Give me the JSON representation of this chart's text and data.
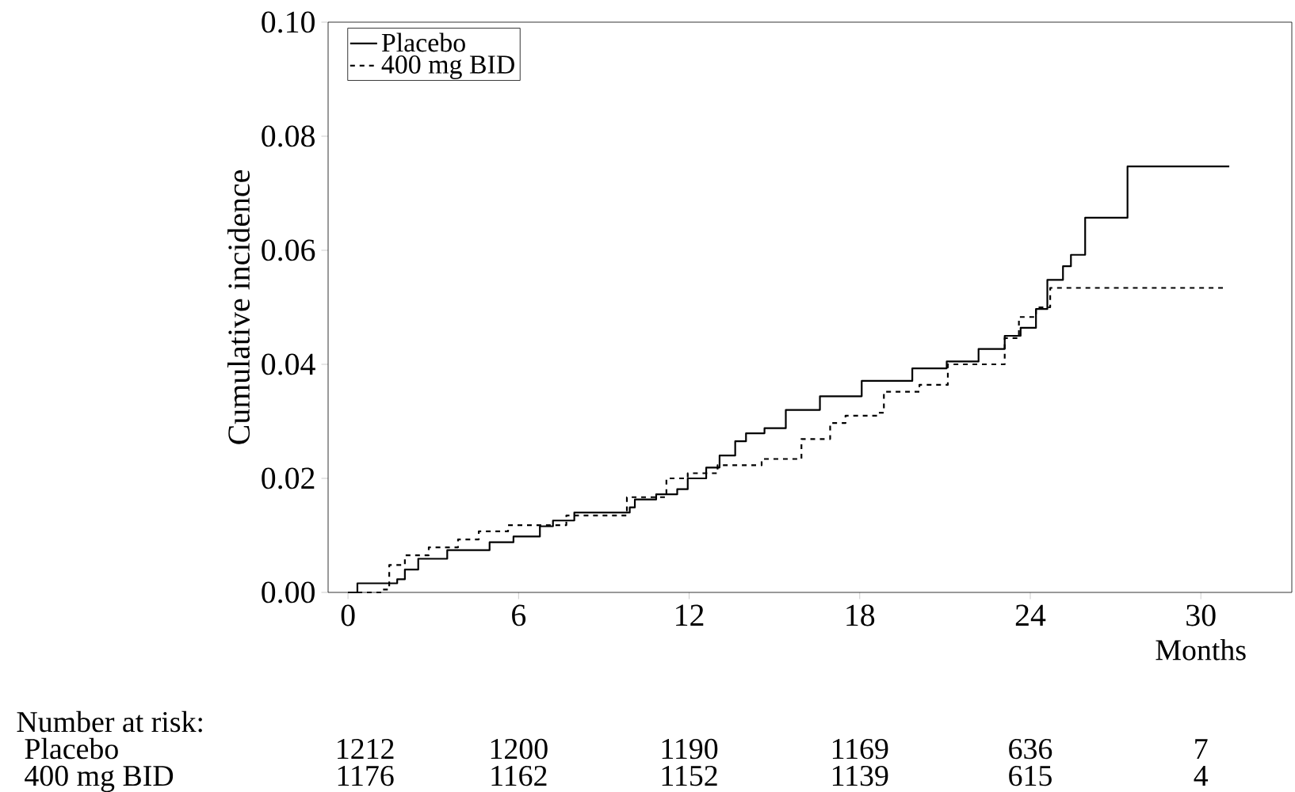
{
  "chart_data": {
    "type": "step",
    "ylabel": "Cumulative incidence",
    "xlabel": "Months",
    "xlim": [
      -0.7,
      33.2
    ],
    "ylim": [
      0,
      0.1
    ],
    "xticks": [
      0,
      6,
      12,
      18,
      24,
      30
    ],
    "yticks": [
      {
        "value": 0,
        "label": "0.00"
      },
      {
        "value": 0.02,
        "label": "0.02"
      },
      {
        "value": 0.04,
        "label": "0.04"
      },
      {
        "value": 0.06,
        "label": "0.06"
      },
      {
        "value": 0.08,
        "label": "0.08"
      },
      {
        "value": 0.1,
        "label": "0.10"
      }
    ],
    "legend": "top left",
    "series": [
      {
        "name": "Placebo",
        "color": "#000000",
        "line_style": "solid",
        "x": [
          0,
          0.33,
          1.73,
          2.0,
          2.47,
          3.49,
          4.98,
          5.82,
          6.75,
          7.21,
          7.96,
          9.91,
          10.09,
          10.84,
          11.58,
          11.95,
          12.6,
          13.07,
          13.62,
          14.0,
          14.65,
          15.4,
          16.6,
          18.07,
          19.85,
          21.06,
          22.18,
          23.1,
          23.66,
          24.2,
          24.6,
          25.15,
          25.43,
          25.93,
          27.42,
          31.0
        ],
        "values": [
          0,
          0.0016,
          0.0023,
          0.004,
          0.0059,
          0.0074,
          0.0088,
          0.0098,
          0.0116,
          0.0126,
          0.014,
          0.0149,
          0.0163,
          0.0172,
          0.0181,
          0.02,
          0.0219,
          0.024,
          0.0265,
          0.0279,
          0.0288,
          0.032,
          0.0344,
          0.0371,
          0.0393,
          0.0405,
          0.0427,
          0.045,
          0.0464,
          0.0497,
          0.0548,
          0.0572,
          0.0592,
          0.0657,
          0.0747,
          0.0747
        ]
      },
      {
        "name": "400 mg BID",
        "color": "#000000",
        "line_style": "dashed",
        "x": [
          0,
          1.17,
          1.45,
          2.0,
          2.84,
          3.87,
          4.6,
          5.63,
          7.68,
          9.81,
          11.2,
          11.95,
          13.0,
          14.55,
          15.95,
          16.96,
          17.5,
          18.63,
          18.85,
          20.1,
          21.1,
          23.1,
          23.6,
          24.2,
          24.7,
          30.8
        ],
        "values": [
          0,
          0.0005,
          0.0048,
          0.0065,
          0.0079,
          0.0093,
          0.0107,
          0.0118,
          0.0135,
          0.0167,
          0.02,
          0.0209,
          0.0223,
          0.0234,
          0.0269,
          0.0297,
          0.031,
          0.0315,
          0.0352,
          0.0364,
          0.04,
          0.0446,
          0.0483,
          0.05,
          0.0534,
          0.0534
        ]
      }
    ],
    "annotations": [
      "Number at risk:",
      "Placebo",
      "1212",
      "1200",
      "1190",
      "1169",
      "636",
      "7",
      "400 mg BID",
      "1176",
      "1162",
      "1152",
      "1139",
      "615",
      "4"
    ]
  }
}
